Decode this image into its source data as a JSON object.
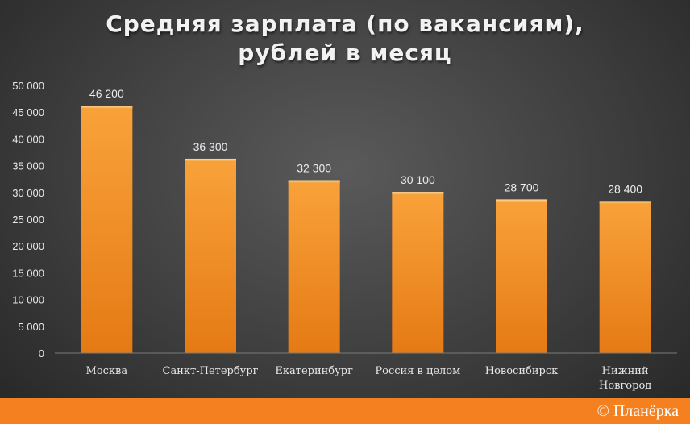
{
  "title_line1": "Средняя зарплата (по вакансиям),",
  "title_line2": "рублей в месяц",
  "credit": "© Планёрка",
  "colors": {
    "bar": "#f7941d",
    "background": "#3e3e3e",
    "footer": "#f4801f",
    "text": "#f2f2f2"
  },
  "chart_data": {
    "type": "bar",
    "categories": [
      "Москва",
      "Санкт-Петербург",
      "Екатеринбург",
      "Россия в целом",
      "Новосибирск",
      "Нижний Новгород"
    ],
    "values": [
      46200,
      36300,
      32300,
      30100,
      28700,
      28400
    ],
    "value_labels": [
      "46 200",
      "36 300",
      "32 300",
      "30 100",
      "28 700",
      "28 400"
    ],
    "y_ticks": [
      0,
      5000,
      10000,
      15000,
      20000,
      25000,
      30000,
      35000,
      40000,
      45000,
      50000
    ],
    "y_tick_labels": [
      "0",
      "5 000",
      "10 000",
      "15 000",
      "20 000",
      "25 000",
      "30 000",
      "35 000",
      "40 000",
      "45 000",
      "50 000"
    ],
    "ylim": [
      0,
      50000
    ],
    "grid": false,
    "legend": "none"
  }
}
